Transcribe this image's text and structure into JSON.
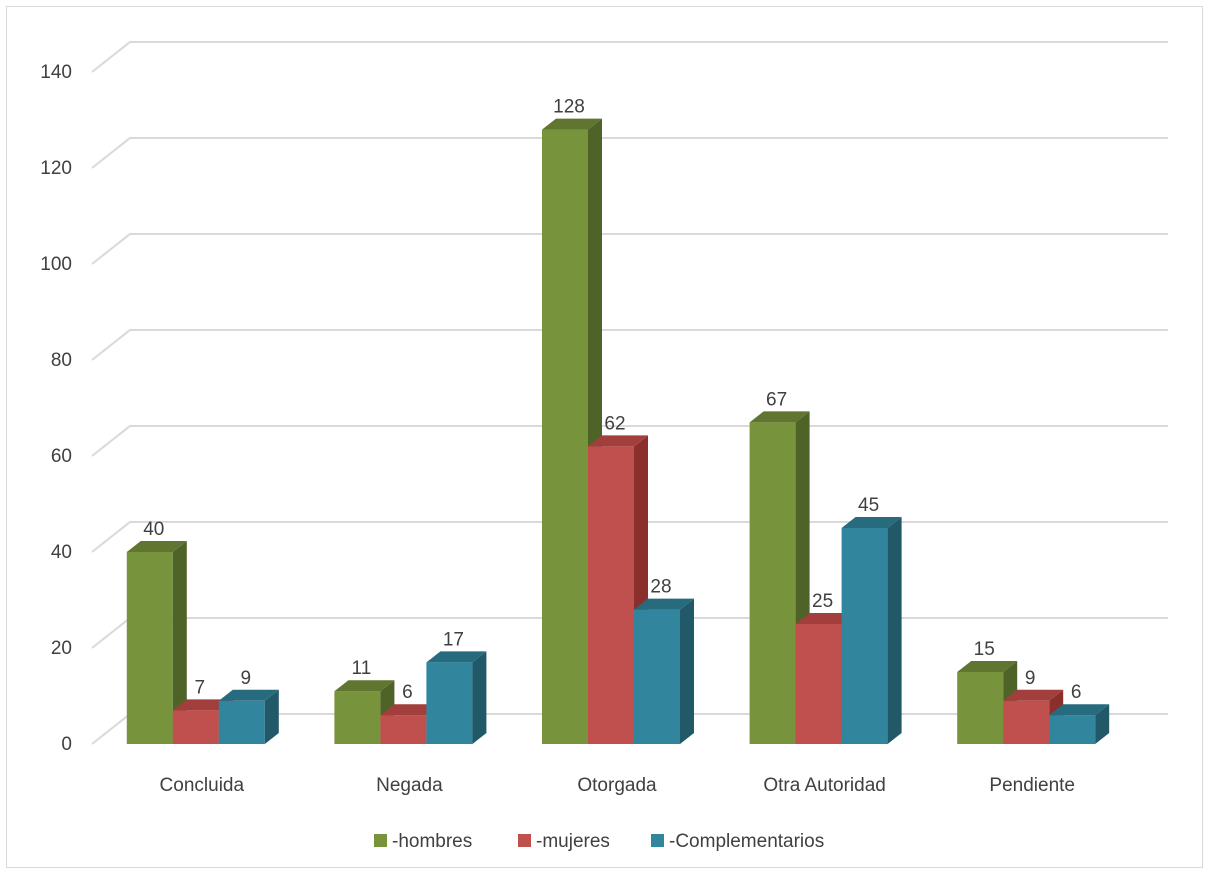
{
  "chart_data": {
    "type": "bar",
    "style": "3d-clustered-column",
    "categories": [
      "Concluida",
      "Negada",
      "Otorgada",
      "Otra Autoridad",
      "Pendiente"
    ],
    "series": [
      {
        "name": "-hombres",
        "values": [
          40,
          11,
          128,
          67,
          15
        ],
        "color": "#77933c",
        "side_color": "#4f6228",
        "top_color": "#5f7530"
      },
      {
        "name": "-mujeres",
        "values": [
          7,
          6,
          62,
          25,
          9
        ],
        "color": "#c0504d",
        "side_color": "#8b2f2c",
        "top_color": "#a23f3c"
      },
      {
        "name": "-Complementarios",
        "values": [
          9,
          17,
          28,
          45,
          6
        ],
        "color": "#31859c",
        "side_color": "#215968",
        "top_color": "#276c7e"
      }
    ],
    "y_ticks": [
      "0",
      "20",
      "40",
      "60",
      "80",
      "100",
      "120",
      "140"
    ],
    "ylim": [
      0,
      140
    ],
    "grid": true,
    "legend_position": "bottom",
    "gridline_color": "#d9d9d9"
  }
}
